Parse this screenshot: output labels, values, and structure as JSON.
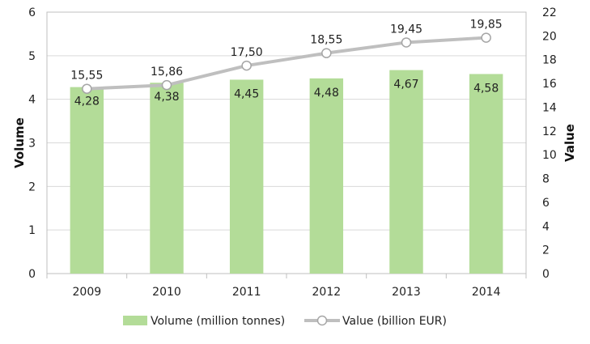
{
  "chart_data": {
    "type": "bar",
    "categories": [
      "2009",
      "2010",
      "2011",
      "2012",
      "2013",
      "2014"
    ],
    "series": [
      {
        "name": "Volume (million tonnes)",
        "type": "bar",
        "axis": "left",
        "values": [
          4.28,
          4.38,
          4.45,
          4.48,
          4.67,
          4.58
        ],
        "labels": [
          "4,28",
          "4,38",
          "4,45",
          "4,48",
          "4,67",
          "4,58"
        ],
        "color": "#b3dc98"
      },
      {
        "name": "Value (billion EUR)",
        "type": "line",
        "axis": "right",
        "values": [
          15.55,
          15.86,
          17.5,
          18.55,
          19.45,
          19.85
        ],
        "labels": [
          "15,55",
          "15,86",
          "17,50",
          "18,55",
          "19,45",
          "19,85"
        ],
        "color": "#bfbfbf"
      }
    ],
    "ylabel": "Volume",
    "ylim": [
      0,
      6
    ],
    "yticks": [
      "0",
      "1",
      "2",
      "3",
      "4",
      "5",
      "6"
    ],
    "y2label": "Value",
    "y2lim": [
      0,
      22
    ],
    "y2ticks": [
      "0",
      "2",
      "4",
      "6",
      "8",
      "10",
      "12",
      "14",
      "16",
      "18",
      "20",
      "22"
    ],
    "grid": true,
    "legend": "bottom"
  }
}
